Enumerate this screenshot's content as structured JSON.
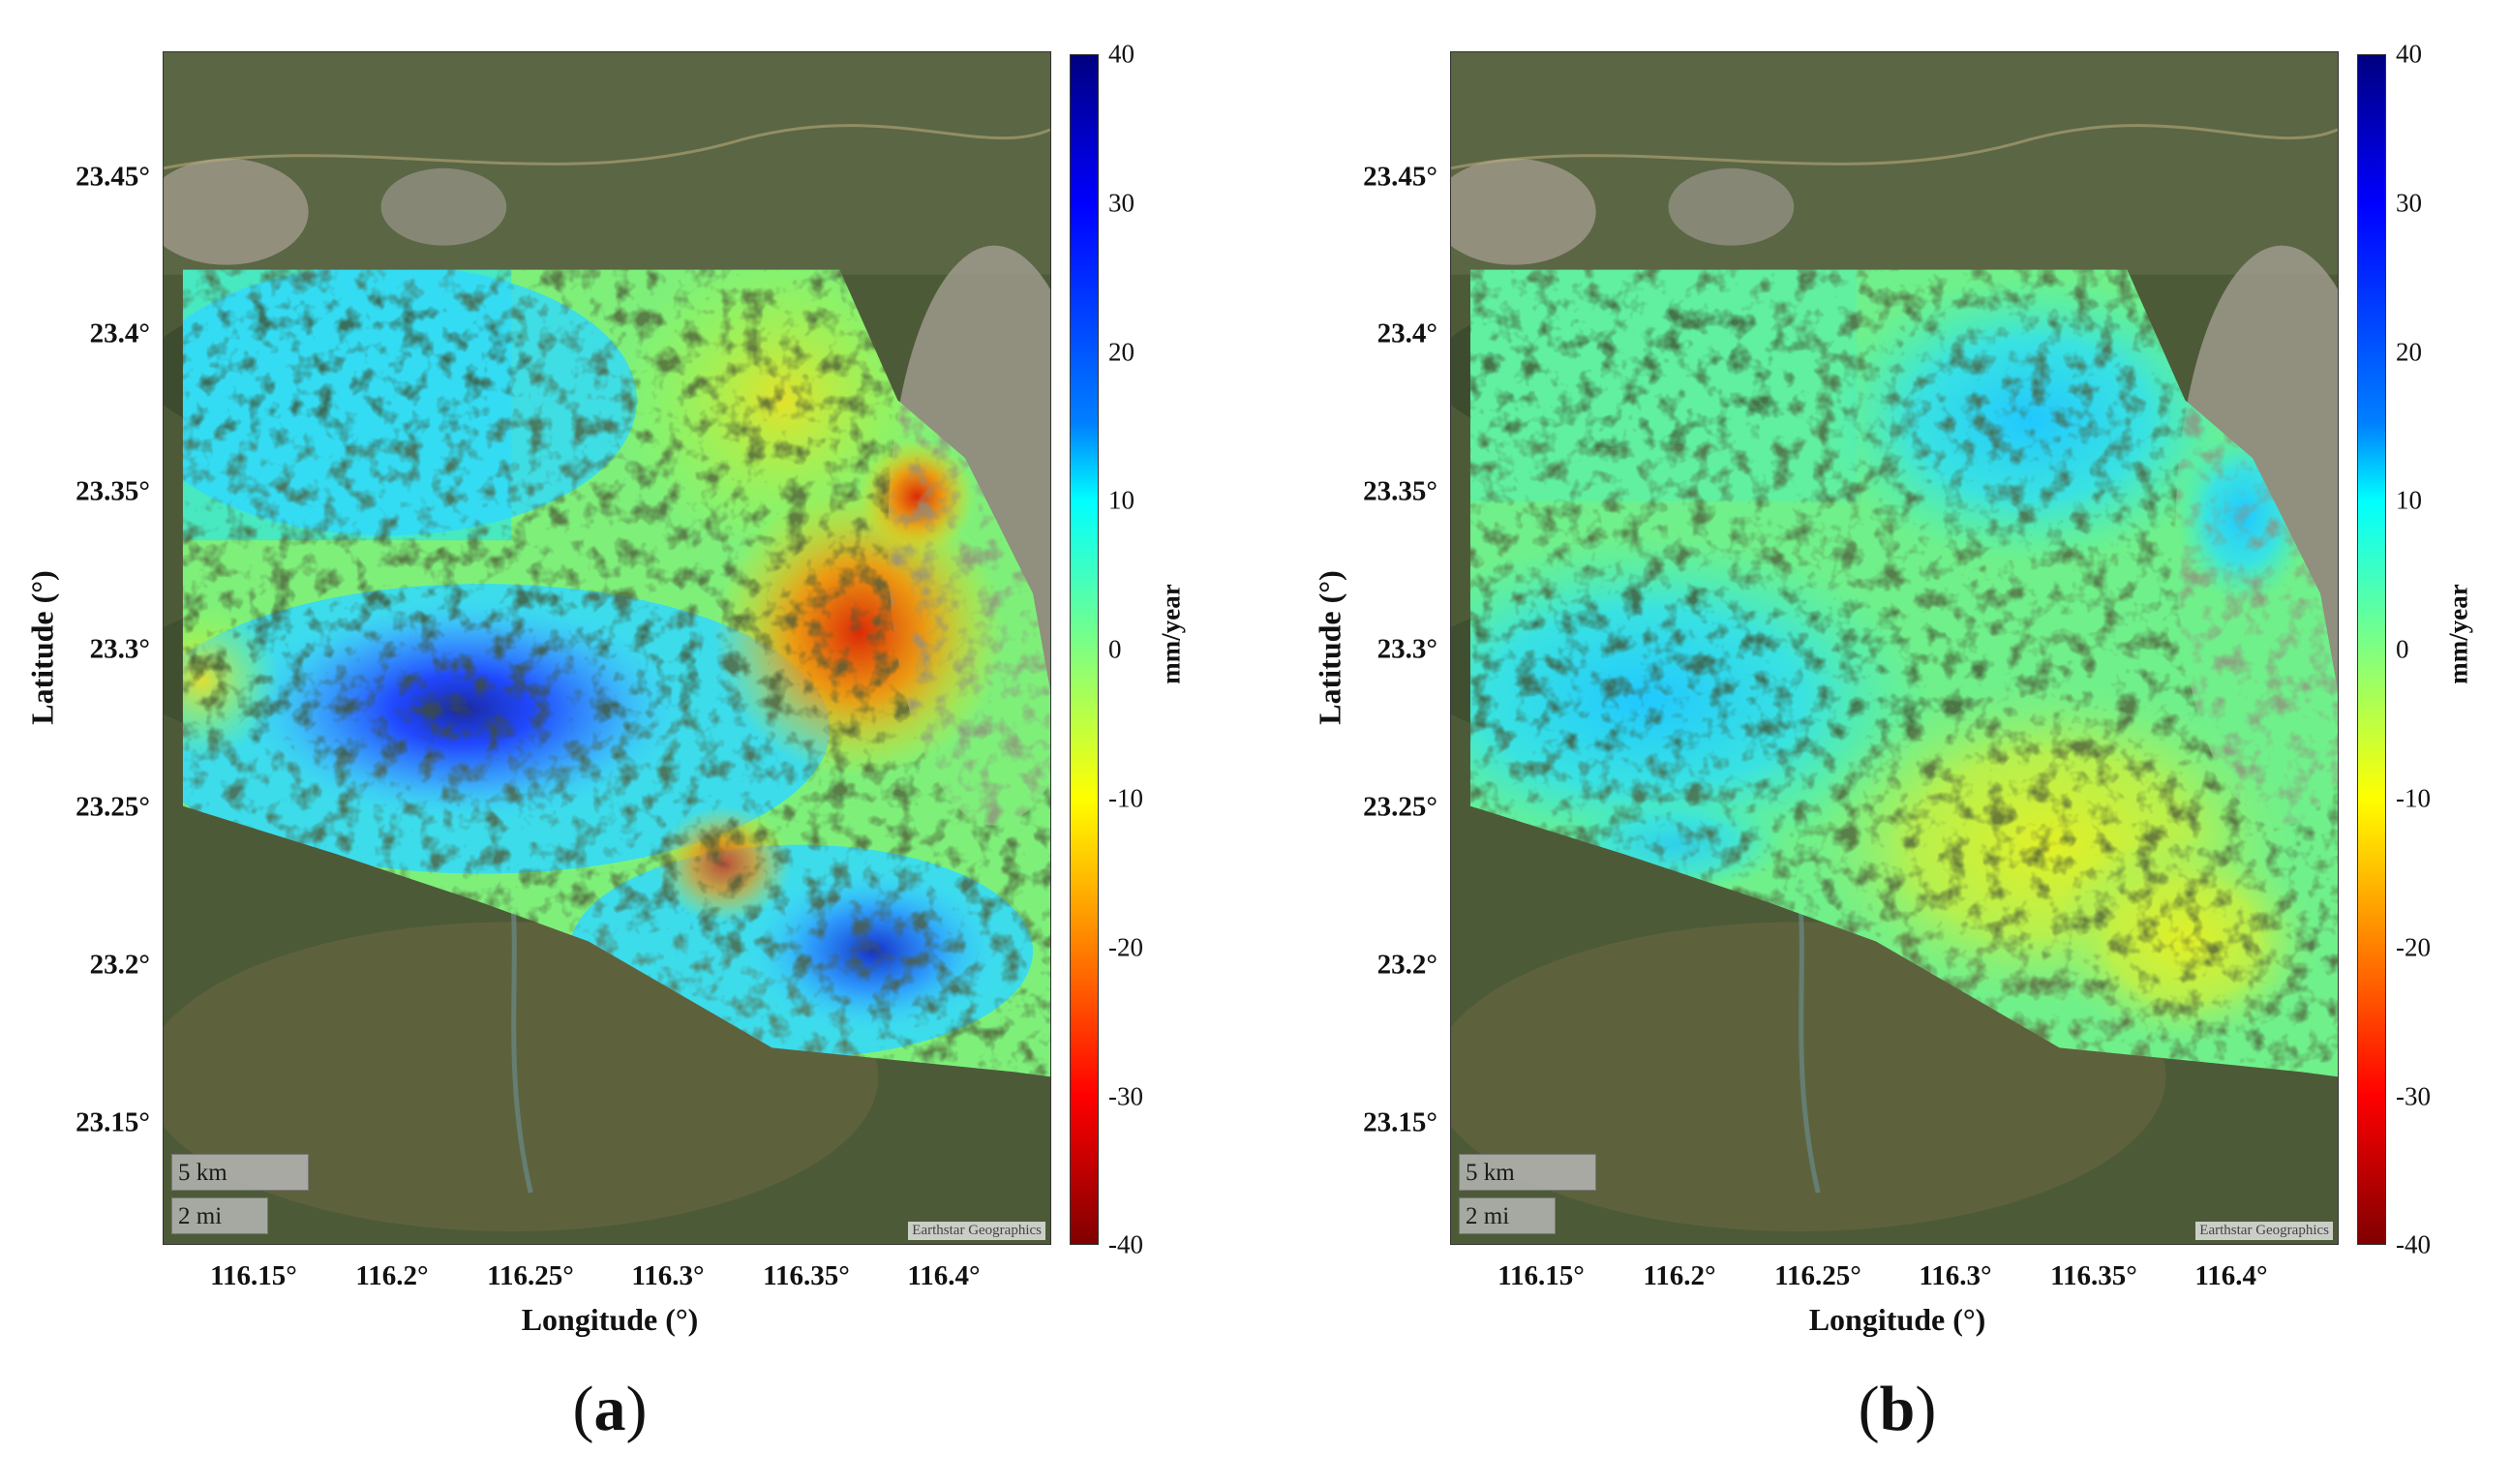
{
  "panels": [
    {
      "id": "a",
      "label_open": "(",
      "label_letter": "a",
      "label_close": ")",
      "scale_km": "5 km",
      "scale_mi": "2 mi",
      "attribution": "Earthstar Geographics",
      "colorbar_unit": "mm/year"
    },
    {
      "id": "b",
      "label_open": "(",
      "label_letter": "b",
      "label_close": ")",
      "scale_km": "5 km",
      "scale_mi": "2 mi",
      "attribution": "Earthstar Geographics",
      "colorbar_unit": "mm/year"
    }
  ],
  "axes": {
    "xlabel": "Longitude (°)",
    "ylabel": "Latitude (°)",
    "x_ticks": [
      "116.15°",
      "116.2°",
      "116.25°",
      "116.3°",
      "116.35°",
      "116.4°"
    ],
    "y_ticks": [
      "23.45°",
      "23.4°",
      "23.35°",
      "23.3°",
      "23.25°",
      "23.2°",
      "23.15°"
    ],
    "colorbar_ticks": [
      "40",
      "30",
      "20",
      "10",
      "0",
      "-10",
      "-20",
      "-30",
      "-40"
    ]
  },
  "map_extent": {
    "lon_range": [
      116.117,
      116.437
    ],
    "lat_range": [
      23.11,
      23.49
    ],
    "colorbar_range": [
      -40,
      40
    ]
  },
  "colors": {
    "colormap": "jet (red = negative, blue = positive)",
    "basemap": "satellite imagery"
  }
}
